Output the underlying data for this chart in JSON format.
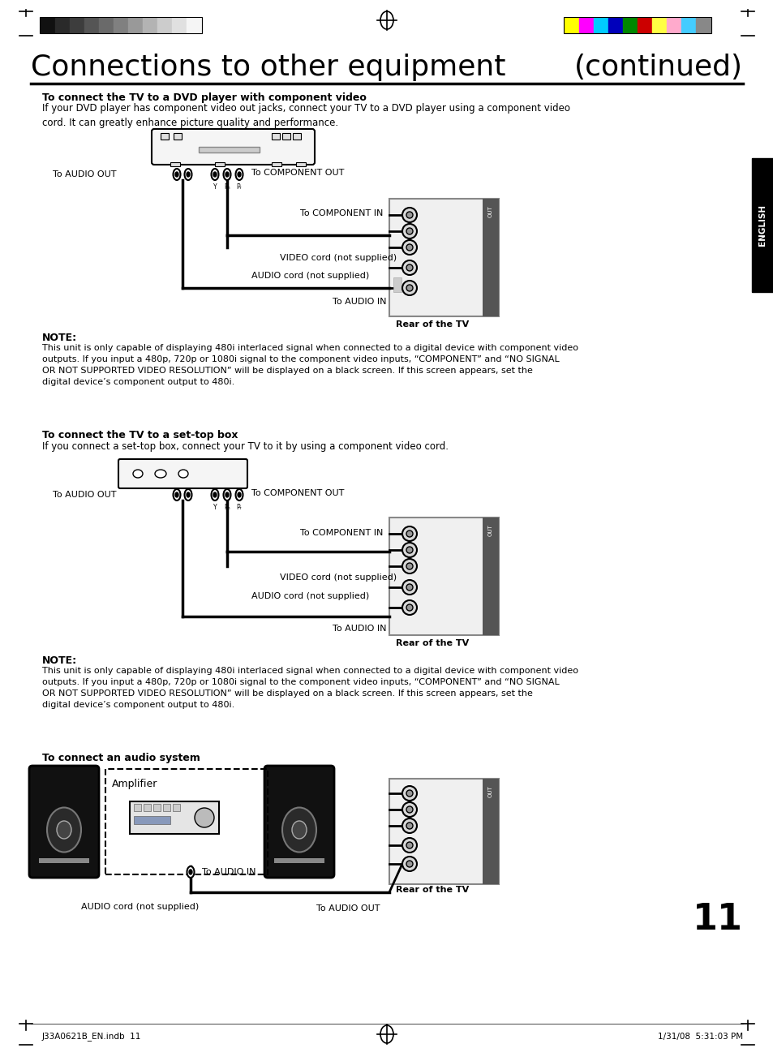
{
  "bg_color": "#ffffff",
  "title_left": "Connections to other equipment",
  "title_right": "(continued)",
  "section1_bold": "To connect the TV to a DVD player with component video",
  "section1_text": "If your DVD player has component video out jacks, connect your TV to a DVD player using a component video\ncord. It can greatly enhance picture quality and performance.",
  "section2_bold": "To connect the TV to a set-top box",
  "section2_text": "If you connect a set-top box, connect your TV to it by using a component video cord.",
  "note_bold": "NOTE:",
  "note1_text": "This unit is only capable of displaying 480i interlaced signal when connected to a digital device with component video\noutputs. If you input a 480p, 720p or 1080i signal to the component video inputs, “COMPONENT” and “NO SIGNAL\nOR NOT SUPPORTED VIDEO RESOLUTION” will be displayed on a black screen. If this screen appears, set the\ndigital device’s component output to 480i.",
  "note2_text": "This unit is only capable of displaying 480i interlaced signal when connected to a digital device with component video\noutputs. If you input a 480p, 720p or 1080i signal to the component video inputs, “COMPONENT” and “NO SIGNAL\nOR NOT SUPPORTED VIDEO RESOLUTION” will be displayed on a black screen. If this screen appears, set the\ndigital device’s component output to 480i.",
  "section3_bold": "To connect an audio system",
  "label_audio_out": "To AUDIO OUT",
  "label_component_out": "To COMPONENT OUT",
  "label_component_in": "To COMPONENT IN",
  "label_video_cord": "VIDEO cord (not supplied)",
  "label_audio_cord": "AUDIO cord (not supplied)",
  "label_audio_in": "To AUDIO IN",
  "label_rear_tv": "Rear of the TV",
  "label_amplifier": "Amplifier",
  "label_audio_cord2": "AUDIO cord (not supplied)",
  "label_audio_in2": "To AUDIO IN",
  "label_audio_out2": "To AUDIO OUT",
  "page_num": "11",
  "footer_left": "J33A0621B_EN.indb  11",
  "footer_right": "1/31/08  5:31:03 PM",
  "english_tab": "ENGLISH",
  "color_bar_left": [
    "#111111",
    "#2a2a2a",
    "#3d3d3d",
    "#555555",
    "#6a6a6a",
    "#808080",
    "#999999",
    "#b3b3b3",
    "#cccccc",
    "#e0e0e0",
    "#f5f5f5"
  ],
  "color_bar_right": [
    "#ffff00",
    "#ff00ff",
    "#00ccff",
    "#0000bb",
    "#008800",
    "#cc0000",
    "#ffff44",
    "#ffaacc",
    "#44ccff",
    "#888888"
  ]
}
